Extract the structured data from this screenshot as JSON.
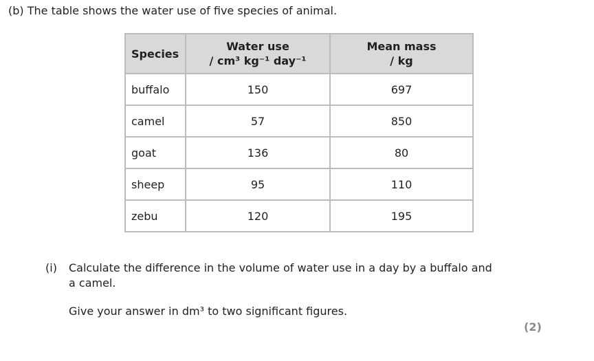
{
  "question_b": "(b)  The table shows the water use of five species of animal.",
  "table": {
    "headers": [
      {
        "line1": "Species"
      },
      {
        "line1": "Water use",
        "line2": "/ cm³ kg⁻¹ day⁻¹"
      },
      {
        "line1": "Mean mass",
        "line2": "/ kg"
      }
    ],
    "rows": [
      {
        "species": "buffalo",
        "water": "150",
        "mass": "697"
      },
      {
        "species": "camel",
        "water": "57",
        "mass": "850"
      },
      {
        "species": "goat",
        "water": "136",
        "mass": "80"
      },
      {
        "species": "sheep",
        "water": "95",
        "mass": "110"
      },
      {
        "species": "zebu",
        "water": "120",
        "mass": "195"
      }
    ]
  },
  "part_i": {
    "label": "(i)",
    "line1": "Calculate the difference in the volume of water use in a day by a buffalo and",
    "line2": "a camel.",
    "line3": "Give your answer in dm³ to two significant figures.",
    "marks": "(2)"
  }
}
